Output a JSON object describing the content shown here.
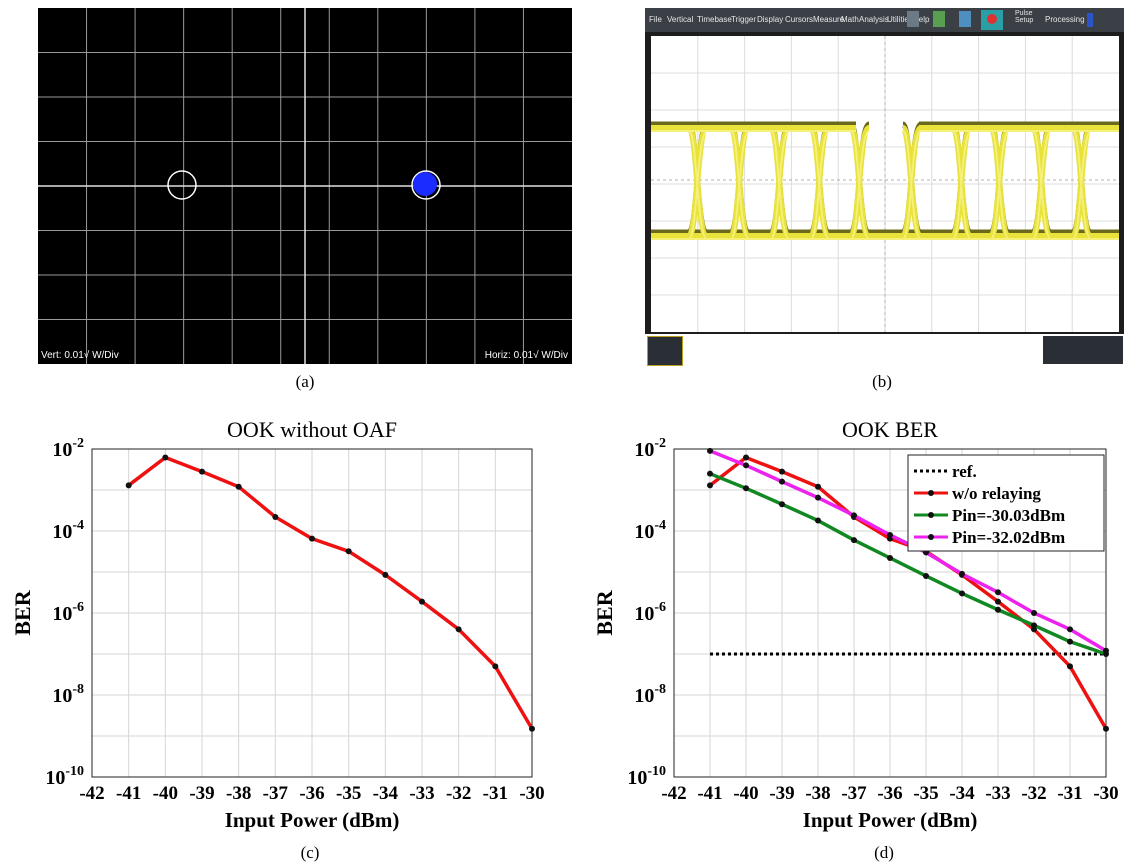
{
  "captions": {
    "a": "(a)",
    "b": "(b)",
    "c": "(c)",
    "d": "(d)"
  },
  "constellation": {
    "vert_label": "Vert: 0.01√ W/Div",
    "horiz_label": "Horiz: 0.01√ W/Div"
  },
  "oscilloscope": {
    "menu": [
      "File",
      "Vertical",
      "Timebase",
      "Trigger",
      "Display",
      "Cursors",
      "Measure",
      "Math",
      "Analysis",
      "Utilities",
      "Help"
    ],
    "right_controls": [
      "Pulse Setup",
      "Processing"
    ]
  },
  "chart_data": [
    {
      "type": "line",
      "title": "OOK without OAF",
      "xlabel": "Input Power (dBm)",
      "ylabel": "BER",
      "xlim": [
        -42,
        -30
      ],
      "ylim": [
        1e-10,
        0.01
      ],
      "yscale": "log",
      "grid": true,
      "x_ticks": [
        "-42",
        "-41",
        "-40",
        "-39",
        "-38",
        "-37",
        "-36",
        "-35",
        "-34",
        "-33",
        "-32",
        "-31",
        "-30"
      ],
      "y_ticks": [
        {
          "base": "10",
          "exp": "-2"
        },
        {
          "base": "10",
          "exp": "-4"
        },
        {
          "base": "10",
          "exp": "-6"
        },
        {
          "base": "10",
          "exp": "-8"
        },
        {
          "base": "10",
          "exp": "-10"
        }
      ],
      "series": [
        {
          "color": "#ee1111",
          "x": [
            -41,
            -40,
            -39,
            -38,
            -37,
            -36,
            -35,
            -34,
            -33,
            -32,
            -31,
            -30
          ],
          "y": [
            0.0013,
            0.0062,
            0.0028,
            0.0012,
            0.00022,
            6.5e-05,
            3.2e-05,
            8.5e-06,
            1.9e-06,
            4e-07,
            5e-08,
            1.5e-09
          ]
        }
      ]
    },
    {
      "type": "line",
      "title": "OOK BER",
      "xlabel": "Input Power (dBm)",
      "ylabel": "BER",
      "xlim": [
        -42,
        -30
      ],
      "ylim": [
        1e-10,
        0.01
      ],
      "yscale": "log",
      "grid": true,
      "legend": "top-right",
      "x_ticks": [
        "-42",
        "-41",
        "-40",
        "-39",
        "-38",
        "-37",
        "-36",
        "-35",
        "-34",
        "-33",
        "-32",
        "-31",
        "-30"
      ],
      "y_ticks": [
        {
          "base": "10",
          "exp": "-2"
        },
        {
          "base": "10",
          "exp": "-4"
        },
        {
          "base": "10",
          "exp": "-6"
        },
        {
          "base": "10",
          "exp": "-8"
        },
        {
          "base": "10",
          "exp": "-10"
        }
      ],
      "series": [
        {
          "name": "ref.",
          "color": "#000000",
          "dashed": true,
          "markers": false,
          "x": [
            -41,
            -30
          ],
          "y": [
            1e-07,
            1e-07
          ]
        },
        {
          "name": "w/o relaying",
          "color": "#ee1111",
          "x": [
            -41,
            -40,
            -39,
            -38,
            -37,
            -36,
            -35,
            -34,
            -33,
            -32,
            -31,
            -30
          ],
          "y": [
            0.0013,
            0.0062,
            0.0028,
            0.0012,
            0.00022,
            6.5e-05,
            3.2e-05,
            8.5e-06,
            1.9e-06,
            4e-07,
            5e-08,
            1.5e-09
          ]
        },
        {
          "name": "Pin=-30.03dBm",
          "color": "#118822",
          "x": [
            -41,
            -40,
            -39,
            -38,
            -37,
            -36,
            -35,
            -34,
            -33,
            -32,
            -31,
            -30
          ],
          "y": [
            0.0025,
            0.0011,
            0.00045,
            0.00018,
            6e-05,
            2.2e-05,
            8e-06,
            3e-06,
            1.2e-06,
            5e-07,
            2e-07,
            1e-07
          ]
        },
        {
          "name": "Pin=-32.02dBm",
          "color": "#ee22ee",
          "x": [
            -41,
            -40,
            -39,
            -38,
            -37,
            -36,
            -35,
            -34,
            -33,
            -32,
            -31,
            -30
          ],
          "y": [
            0.009,
            0.004,
            0.0016,
            0.00065,
            0.00024,
            8e-05,
            3e-05,
            9e-06,
            3.2e-06,
            1e-06,
            4e-07,
            1.2e-07
          ]
        }
      ]
    }
  ]
}
